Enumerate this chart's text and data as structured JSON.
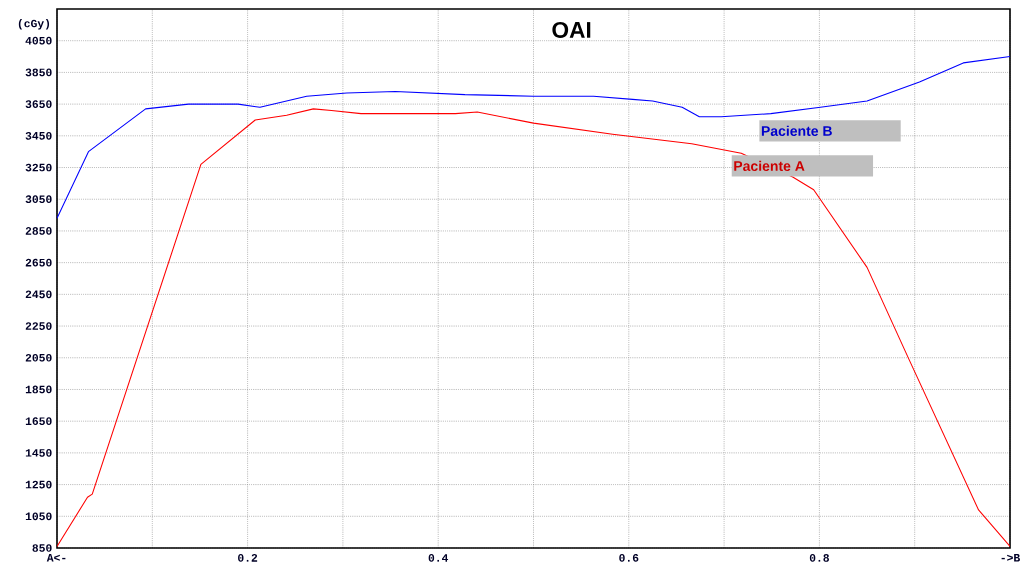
{
  "chart_data": {
    "type": "line",
    "title": "OAI",
    "ylabel": "(cGy)",
    "xlim": [
      0,
      1
    ],
    "ylim": [
      850,
      4250
    ],
    "xticks": [
      {
        "value": 0,
        "label": "A<-"
      },
      {
        "value": 0.1,
        "label": null
      },
      0.2,
      {
        "value": 0.3,
        "label": null
      },
      0.4,
      {
        "value": 0.5,
        "label": null
      },
      0.6,
      {
        "value": 0.7,
        "label": null
      },
      0.8,
      {
        "value": 0.9,
        "label": null
      },
      {
        "value": 1,
        "label": "->B"
      }
    ],
    "yticks": [
      850,
      1050,
      1250,
      1450,
      1650,
      1850,
      2050,
      2250,
      2450,
      2650,
      2850,
      3050,
      3250,
      3450,
      3650,
      3850,
      4050
    ],
    "grid": true,
    "series": [
      {
        "name": "Paciente B",
        "color": "#0000ff",
        "x": [
          0,
          0.033,
          0.093,
          0.138,
          0.19,
          0.213,
          0.262,
          0.304,
          0.355,
          0.428,
          0.5,
          0.563,
          0.604,
          0.625,
          0.656,
          0.674,
          0.697,
          0.749,
          0.801,
          0.85,
          0.905,
          0.951,
          1.0
        ],
        "values": [
          2930,
          3350,
          3620,
          3650,
          3650,
          3630,
          3700,
          3720,
          3730,
          3710,
          3700,
          3700,
          3680,
          3670,
          3630,
          3570,
          3570,
          3590,
          3630,
          3670,
          3790,
          3910,
          3950
        ]
      },
      {
        "name": "Paciente A",
        "color": "#ff0000",
        "x": [
          0,
          0.032,
          0.037,
          0.151,
          0.208,
          0.241,
          0.269,
          0.288,
          0.319,
          0.418,
          0.441,
          0.5,
          0.583,
          0.666,
          0.718,
          0.772,
          0.794,
          0.85,
          0.894,
          0.967,
          1.0
        ],
        "values": [
          860,
          1170,
          1190,
          3270,
          3550,
          3580,
          3620,
          3610,
          3590,
          3590,
          3600,
          3530,
          3460,
          3400,
          3340,
          3190,
          3110,
          2620,
          2040,
          1090,
          860
        ]
      }
    ]
  }
}
